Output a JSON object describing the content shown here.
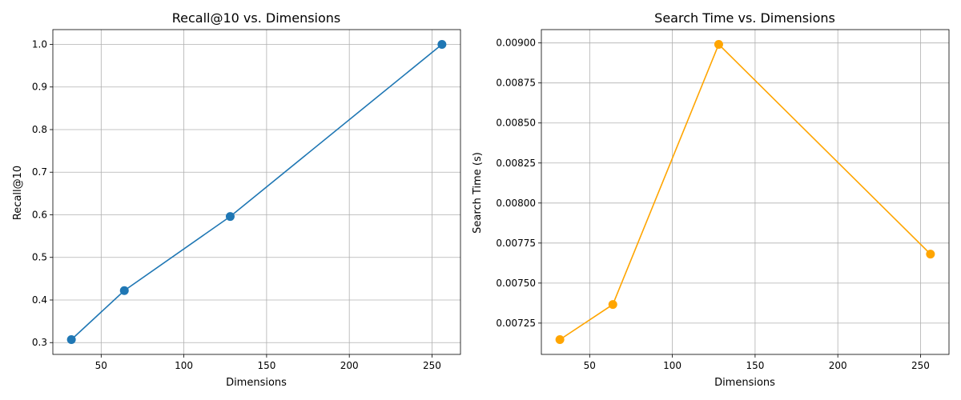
{
  "chart_data": [
    {
      "type": "line",
      "title": "Recall@10 vs. Dimensions",
      "xlabel": "Dimensions",
      "ylabel": "Recall@10",
      "x": [
        32,
        64,
        128,
        256
      ],
      "series": [
        {
          "name": "Recall@10",
          "values": [
            0.307,
            0.422,
            0.596,
            1.0
          ],
          "color": "#1f77b4"
        }
      ],
      "xlim": [
        20.8,
        267.2
      ],
      "ylim": [
        0.2723,
        1.0347
      ],
      "xticks": [
        50,
        100,
        150,
        200,
        250
      ],
      "xtick_labels": [
        "50",
        "100",
        "150",
        "200",
        "250"
      ],
      "yticks": [
        0.3,
        0.4,
        0.5,
        0.6,
        0.7,
        0.8,
        0.9,
        1.0
      ],
      "ytick_labels": [
        "0.3",
        "0.4",
        "0.5",
        "0.6",
        "0.7",
        "0.8",
        "0.9",
        "1.0"
      ],
      "grid": true,
      "marker": "circle"
    },
    {
      "type": "line",
      "title": "Search Time vs. Dimensions",
      "xlabel": "Dimensions",
      "ylabel": "Search Time (s)",
      "x": [
        32,
        64,
        128,
        256
      ],
      "series": [
        {
          "name": "Search Time",
          "values": [
            0.007147,
            0.007366,
            0.008991,
            0.007681
          ],
          "color": "#ffa500"
        }
      ],
      "xlim": [
        20.8,
        267.2
      ],
      "ylim": [
        0.0070545,
        0.0090833
      ],
      "xticks": [
        50,
        100,
        150,
        200,
        250
      ],
      "xtick_labels": [
        "50",
        "100",
        "150",
        "200",
        "250"
      ],
      "yticks": [
        0.00725,
        0.0075,
        0.00775,
        0.008,
        0.00825,
        0.0085,
        0.00875,
        0.009
      ],
      "ytick_labels": [
        "0.00725",
        "0.00750",
        "0.00775",
        "0.00800",
        "0.00825",
        "0.00850",
        "0.00875",
        "0.00900"
      ],
      "grid": true,
      "marker": "circle"
    }
  ]
}
